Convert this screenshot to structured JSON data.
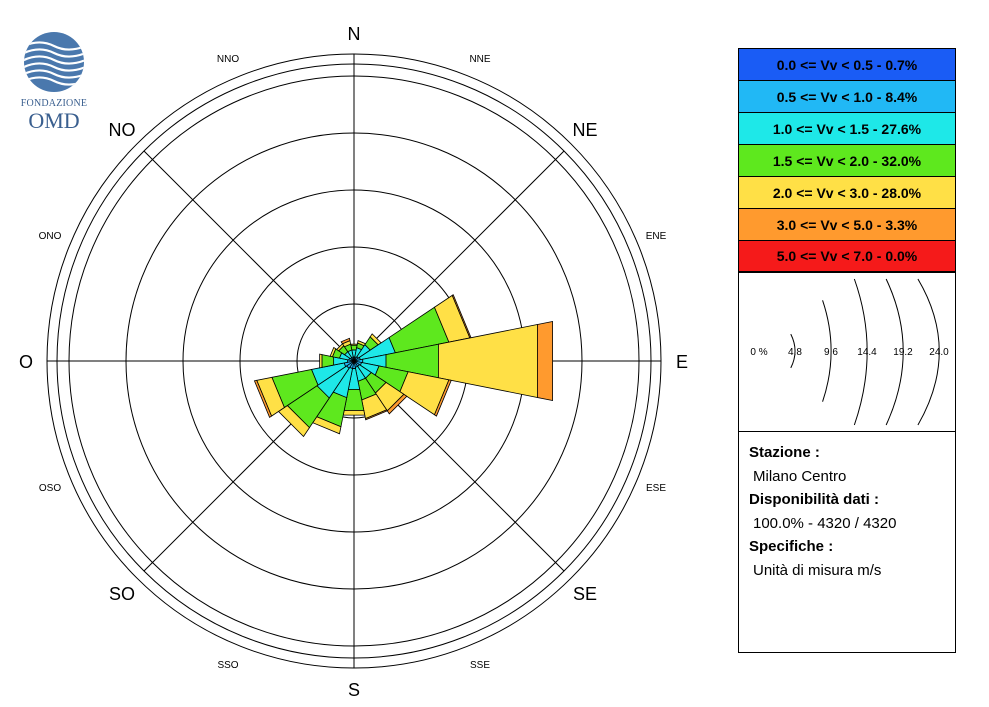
{
  "logo": {
    "line1": "FONDAZIONE",
    "line2": "OMD",
    "icon": "globe-waves-logo"
  },
  "compass": {
    "N": "N",
    "NNE": "NNE",
    "NE": "NE",
    "ENE": "ENE",
    "E": "E",
    "ESE": "ESE",
    "SE": "SE",
    "SSE": "SSE",
    "S": "S",
    "SSO": "SSO",
    "SO": "SO",
    "OSO": "OSO",
    "O": "O",
    "ONO": "ONO",
    "NO": "NO",
    "NNO": "NNO"
  },
  "legend": [
    {
      "label": "0.0 <= Vv < 0.5 - 0.7%",
      "color": "#1a5cf5"
    },
    {
      "label": "0.5 <= Vv < 1.0 - 8.4%",
      "color": "#21b8f5"
    },
    {
      "label": "1.0 <= Vv < 1.5 - 27.6%",
      "color": "#1ee8e8"
    },
    {
      "label": "1.5 <= Vv < 2.0 - 32.0%",
      "color": "#5ee81e"
    },
    {
      "label": "2.0 <= Vv < 3.0 - 28.0%",
      "color": "#ffe046"
    },
    {
      "label": "3.0 <= Vv < 5.0 - 3.3%",
      "color": "#ff9a2e"
    },
    {
      "label": "5.0 <= Vv < 7.0 - 0.0%",
      "color": "#f51a1a"
    }
  ],
  "scale": {
    "labels": [
      "0 %",
      "4.8",
      "9.6",
      "14.4",
      "19.2",
      "24.0"
    ]
  },
  "info": {
    "station_label": "Stazione :",
    "station_value": "Milano Centro",
    "availability_label": "Disponibilità dati :",
    "availability_value": "100.0% - 4320 / 4320",
    "specs_label": "Specifiche :",
    "specs_value": "Unità di misura m/s"
  },
  "chart_data": {
    "type": "wind-rose",
    "title": "",
    "directions": [
      "N",
      "NNE",
      "NE",
      "ENE",
      "E",
      "ESE",
      "SE",
      "SSE",
      "S",
      "SSO",
      "SO",
      "OSO",
      "O",
      "ONO",
      "NO",
      "NNO"
    ],
    "rmax": 24.0,
    "rings": [
      4.8,
      9.6,
      14.4,
      19.2,
      24.0
    ],
    "series": [
      {
        "name": "0.0 <= Vv < 0.5 - 0.7%",
        "values": [
          0.05,
          0.05,
          0.05,
          0.05,
          0.05,
          0.05,
          0.05,
          0.05,
          0.05,
          0.05,
          0.05,
          0.05,
          0.05,
          0.05,
          0.05,
          0.05
        ]
      },
      {
        "name": "0.5 <= Vv < 1.0 - 8.4%",
        "values": [
          0.3,
          0.3,
          0.4,
          0.5,
          0.7,
          0.6,
          0.5,
          0.5,
          0.6,
          0.6,
          0.7,
          0.8,
          0.5,
          0.4,
          0.3,
          0.3
        ]
      },
      {
        "name": "1.0 <= Vv < 1.5 - 27.6%",
        "values": [
          0.6,
          0.8,
          1.2,
          3.0,
          2.0,
          1.5,
          1.2,
          1.2,
          1.8,
          2.5,
          3.0,
          2.8,
          1.2,
          0.8,
          0.6,
          0.6
        ]
      },
      {
        "name": "1.5 <= Vv < 2.0 - 32.0%",
        "values": [
          0.4,
          0.4,
          0.8,
          4.6,
          4.5,
          2.5,
          1.5,
          1.6,
          1.8,
          2.5,
          3.0,
          3.4,
          1.0,
          0.6,
          0.6,
          0.5
        ]
      },
      {
        "name": "2.0 <= Vv < 3.0 - 28.0%",
        "values": [
          0.1,
          0.2,
          0.3,
          1.8,
          8.5,
          3.5,
          1.8,
          1.6,
          0.4,
          0.6,
          0.9,
          1.3,
          0.2,
          0.2,
          0.2,
          0.3
        ]
      },
      {
        "name": "3.0 <= Vv < 5.0 - 3.3%",
        "values": [
          0.0,
          0.0,
          0.0,
          0.1,
          1.3,
          0.2,
          0.3,
          0.1,
          0.0,
          0.0,
          0.0,
          0.2,
          0.0,
          0.0,
          0.0,
          0.2
        ]
      },
      {
        "name": "5.0 <= Vv < 7.0 - 0.0%",
        "values": [
          0,
          0,
          0,
          0,
          0,
          0,
          0,
          0,
          0,
          0,
          0,
          0,
          0,
          0,
          0,
          0
        ]
      }
    ]
  }
}
